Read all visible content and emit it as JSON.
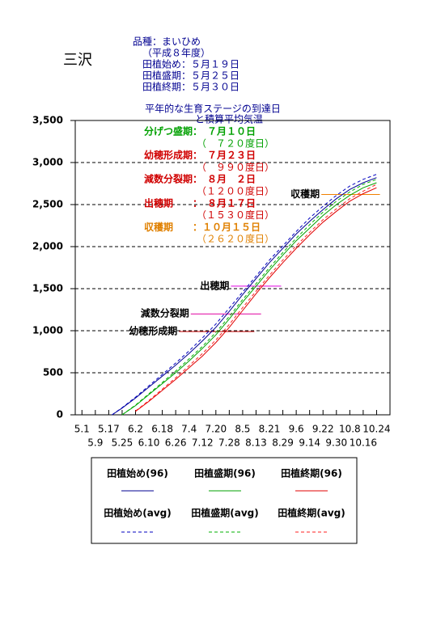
{
  "page_title": "三沢",
  "header": [
    "品種：まいひめ",
    "（平成８年度）",
    "田植始め：５月１９日",
    "田植盛期：５月２５日",
    "田植終期：５月３０日"
  ],
  "chart_data": {
    "type": "line",
    "title": [
      "平年的な生育ステージの到達日",
      "と積算平均気温"
    ],
    "annotations": [
      {
        "text": "分げつ盛期：　７月１０日",
        "color": "#00a000"
      },
      {
        "text": "（　７２０度日）",
        "color": "#00a000"
      },
      {
        "text": "幼穂形成期：　７月２３日",
        "color": "#d00000"
      },
      {
        "text": "（　９９０度日）",
        "color": "#d00000"
      },
      {
        "text": "減数分裂期：　８月　２日",
        "color": "#d00000"
      },
      {
        "text": "（１２００度日）",
        "color": "#d00000"
      },
      {
        "text": "出穂期　　：　８月１７日",
        "color": "#d00000"
      },
      {
        "text": "（１５３０度日）",
        "color": "#d00000"
      },
      {
        "text": "収穫期　　：１０月１５日",
        "color": "#e08000"
      },
      {
        "text": "（２６２０度日）",
        "color": "#e08000"
      }
    ],
    "stages": [
      {
        "name": "幼穂形成期",
        "value": 990,
        "x": [
          58,
          103
        ],
        "color": "#c00000"
      },
      {
        "name": "減数分裂期",
        "value": 1200,
        "x": [
          65,
          107
        ],
        "color": "#e000a0"
      },
      {
        "name": "出穂期",
        "value": 1530,
        "x": [
          89,
          119
        ],
        "color": "#e000e0"
      },
      {
        "name": "収穫期",
        "value": 2620,
        "x": [
          143,
          178
        ],
        "color": "#f08000"
      }
    ],
    "x": [
      18,
      24,
      32,
      40,
      48,
      56,
      64,
      72,
      80,
      88,
      96,
      104,
      112,
      120,
      128,
      136,
      144,
      152,
      160,
      168,
      176
    ],
    "series": [
      {
        "name": "田植始め(96)",
        "color": "#000090",
        "dash": false,
        "values": [
          0,
          80,
          200,
          330,
          460,
          590,
          730,
          880,
          1040,
          1230,
          1430,
          1620,
          1810,
          1980,
          2150,
          2300,
          2440,
          2570,
          2680,
          2760,
          2820
        ]
      },
      {
        "name": "田植盛期(96)",
        "color": "#00a000",
        "dash": false,
        "values": [
          null,
          0,
          110,
          240,
          370,
          500,
          640,
          790,
          950,
          1140,
          1340,
          1530,
          1720,
          1900,
          2070,
          2220,
          2370,
          2500,
          2610,
          2700,
          2760
        ]
      },
      {
        "name": "田植終期(96)",
        "color": "#e00000",
        "dash": false,
        "values": [
          null,
          null,
          40,
          160,
          290,
          420,
          560,
          700,
          860,
          1040,
          1240,
          1440,
          1630,
          1810,
          1980,
          2140,
          2290,
          2420,
          2540,
          2630,
          2700
        ]
      },
      {
        "name": "田植始め(avg)",
        "color": "#0000c0",
        "dash": true,
        "values": [
          0,
          85,
          210,
          345,
          480,
          615,
          760,
          915,
          1080,
          1270,
          1460,
          1650,
          1840,
          2010,
          2180,
          2340,
          2480,
          2610,
          2720,
          2800,
          2860
        ]
      },
      {
        "name": "田植盛期(avg)",
        "color": "#00b000",
        "dash": true,
        "values": [
          null,
          0,
          115,
          250,
          385,
          520,
          665,
          815,
          980,
          1170,
          1370,
          1560,
          1750,
          1930,
          2100,
          2260,
          2410,
          2540,
          2650,
          2740,
          2800
        ]
      },
      {
        "name": "田植終期(avg)",
        "color": "#ff2020",
        "dash": true,
        "values": [
          null,
          null,
          45,
          170,
          305,
          440,
          585,
          730,
          890,
          1075,
          1275,
          1470,
          1660,
          1840,
          2010,
          2170,
          2320,
          2450,
          2570,
          2660,
          2740
        ]
      }
    ],
    "xlim": [
      -4,
      184
    ],
    "xticks": [
      {
        "value": 0,
        "label": "5.1"
      },
      {
        "value": 8,
        "label": "5.9"
      },
      {
        "value": 16,
        "label": "5.17"
      },
      {
        "value": 24,
        "label": "5.25"
      },
      {
        "value": 32,
        "label": "6.2"
      },
      {
        "value": 40,
        "label": "6.10"
      },
      {
        "value": 48,
        "label": "6.18"
      },
      {
        "value": 56,
        "label": "6.26"
      },
      {
        "value": 64,
        "label": "7.4"
      },
      {
        "value": 72,
        "label": "7.12"
      },
      {
        "value": 80,
        "label": "7.20"
      },
      {
        "value": 88,
        "label": "7.28"
      },
      {
        "value": 96,
        "label": "8.5"
      },
      {
        "value": 104,
        "label": "8.13"
      },
      {
        "value": 112,
        "label": "8.21"
      },
      {
        "value": 120,
        "label": "8.29"
      },
      {
        "value": 128,
        "label": "9.6"
      },
      {
        "value": 136,
        "label": "9.14"
      },
      {
        "value": 144,
        "label": "9.22"
      },
      {
        "value": 152,
        "label": "9.30"
      },
      {
        "value": 160,
        "label": "10.8"
      },
      {
        "value": 168,
        "label": "10.16"
      },
      {
        "value": 176,
        "label": "10.24"
      }
    ],
    "ylim": [
      0,
      3500
    ],
    "yticks": [
      0,
      500,
      {
        "value": 1000,
        "label": "1,000"
      },
      {
        "value": 1500,
        "label": "1,500"
      },
      {
        "value": 2000,
        "label": "2,000"
      },
      {
        "value": 2500,
        "label": "2,500"
      },
      {
        "value": 3000,
        "label": "3,000"
      },
      {
        "value": 3500,
        "label": "3,500"
      }
    ],
    "grid": true
  }
}
